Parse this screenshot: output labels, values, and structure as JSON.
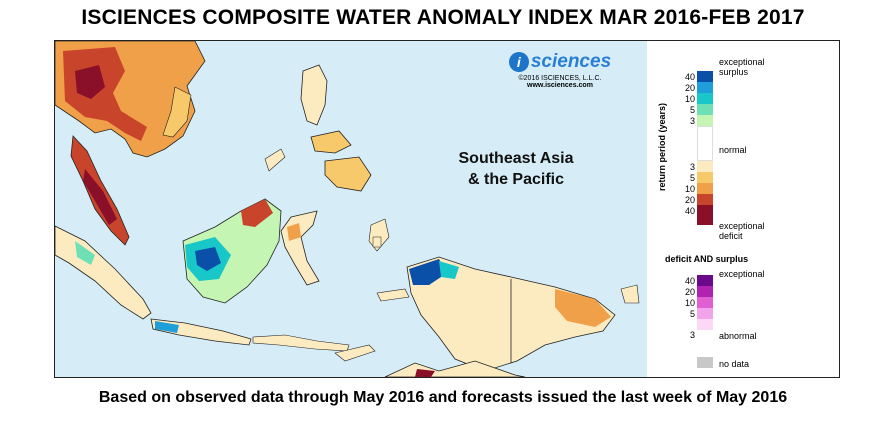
{
  "title": "ISCIENCES COMPOSITE WATER ANOMALY INDEX MAR 2016-FEB 2017",
  "footer": "Based on observed data through May 2016 and forecasts issued the last week of May 2016",
  "map": {
    "region_line1": "Southeast Asia",
    "region_line2": "& the Pacific",
    "colors": {
      "ocean": "#d6edf7",
      "land": "#ffffff",
      "border": "#222222"
    }
  },
  "brand": {
    "logo_letter": "i",
    "name": "sciences",
    "copyright": "©2016  ISCIENCES, L.L.C.",
    "url": "www.isciences.com"
  },
  "legend": {
    "surplus_top": "exceptional",
    "surplus_bottom": "surplus",
    "normal": "normal",
    "deficit_top": "exceptional",
    "deficit_bottom": "deficit",
    "axis_title": "return period (years)",
    "surplus_ticks": [
      "40",
      "20",
      "10",
      "5",
      "3"
    ],
    "deficit_ticks": [
      "3",
      "5",
      "10",
      "20",
      "40"
    ],
    "surplus_colors": [
      "#0a4fa8",
      "#1f9fd9",
      "#18c7c7",
      "#6fe0b6",
      "#c4f5b3"
    ],
    "deficit_colors": [
      "#fcebc0",
      "#f7c96b",
      "#f0a048",
      "#c8452b",
      "#8a0f28"
    ],
    "both_title": "deficit AND surplus",
    "both_top": "exceptional",
    "both_bottom": "abnormal",
    "both_ticks": [
      "40",
      "20",
      "10",
      "5",
      "3"
    ],
    "both_colors": [
      "#6a0a8a",
      "#b023b0",
      "#e05fd3",
      "#f2a3ea",
      "#fad8f6"
    ],
    "nodata": "no data",
    "nodata_color": "#c8c8c8"
  }
}
